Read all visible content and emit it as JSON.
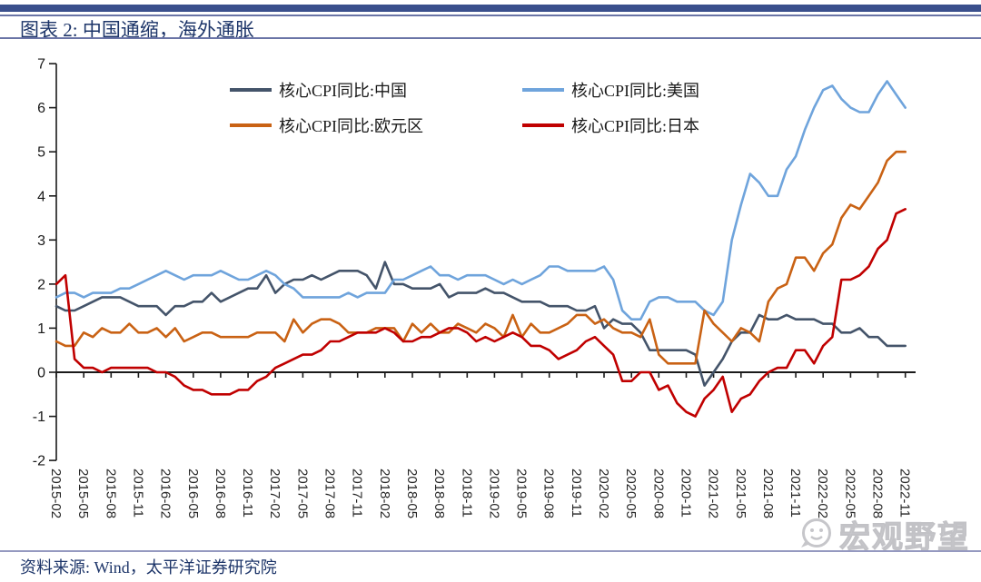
{
  "header": {
    "title": "图表 2:  中国通缩，海外通胀"
  },
  "footer": {
    "source": "资料来源:  Wind，太平洋证券研究院"
  },
  "watermark": {
    "text": "宏观野望",
    "icon": "wechat-face-icon"
  },
  "colors": {
    "accent_bar": "#3A4F8C",
    "title_text": "#1D3569",
    "axis": "#1a1a1a",
    "footer_rule": "#9599C0",
    "watermark_gray": "#C9C9CD"
  },
  "chart_data": {
    "type": "line",
    "title": "图表 2: 中国通缩，海外通胀",
    "xlabel": "",
    "ylabel": "",
    "ylim": [
      -2,
      7
    ],
    "y_ticks": [
      7,
      6,
      5,
      4,
      3,
      2,
      1,
      0,
      -1,
      -2
    ],
    "grid": false,
    "legend_position": "top-inside-two-columns",
    "x_start": "2015-02",
    "x_frequency": "monthly",
    "x_tick_labels": [
      "2015-02",
      "2015-05",
      "2015-08",
      "2015-11",
      "2016-02",
      "2016-05",
      "2016-08",
      "2016-11",
      "2017-02",
      "2017-05",
      "2017-08",
      "2017-11",
      "2018-02",
      "2018-05",
      "2018-08",
      "2018-11",
      "2019-02",
      "2019-05",
      "2019-08",
      "2019-11",
      "2020-02",
      "2020-05",
      "2020-08",
      "2020-11",
      "2021-02",
      "2021-05",
      "2021-08",
      "2021-11",
      "2022-02",
      "2022-05",
      "2022-08",
      "2022-11"
    ],
    "x_tick_step_months": 3,
    "series": [
      {
        "name": "核心CPI同比:中国",
        "color": "#44546A",
        "values": [
          1.5,
          1.4,
          1.4,
          1.5,
          1.6,
          1.7,
          1.7,
          1.7,
          1.6,
          1.5,
          1.5,
          1.5,
          1.3,
          1.5,
          1.5,
          1.6,
          1.6,
          1.8,
          1.6,
          1.7,
          1.8,
          1.9,
          1.9,
          2.2,
          1.8,
          2.0,
          2.1,
          2.1,
          2.2,
          2.1,
          2.2,
          2.3,
          2.3,
          2.3,
          2.2,
          1.9,
          2.5,
          2.0,
          2.0,
          1.9,
          1.9,
          1.9,
          2.0,
          1.7,
          1.8,
          1.8,
          1.8,
          1.9,
          1.8,
          1.8,
          1.7,
          1.6,
          1.6,
          1.6,
          1.5,
          1.5,
          1.5,
          1.4,
          1.4,
          1.5,
          1.0,
          1.2,
          1.1,
          1.1,
          0.9,
          0.5,
          0.5,
          0.5,
          0.5,
          0.5,
          0.4,
          -0.3,
          0.0,
          0.3,
          0.7,
          0.9,
          0.9,
          1.3,
          1.2,
          1.2,
          1.3,
          1.2,
          1.2,
          1.2,
          1.1,
          1.1,
          0.9,
          0.9,
          1.0,
          0.8,
          0.8,
          0.6,
          0.6,
          0.6
        ]
      },
      {
        "name": "核心CPI同比:美国",
        "color": "#6FA4DC",
        "values": [
          1.7,
          1.8,
          1.8,
          1.7,
          1.8,
          1.8,
          1.8,
          1.9,
          1.9,
          2.0,
          2.1,
          2.2,
          2.3,
          2.2,
          2.1,
          2.2,
          2.2,
          2.2,
          2.3,
          2.2,
          2.1,
          2.1,
          2.2,
          2.3,
          2.2,
          2.0,
          1.9,
          1.7,
          1.7,
          1.7,
          1.7,
          1.7,
          1.8,
          1.7,
          1.8,
          1.8,
          1.8,
          2.1,
          2.1,
          2.2,
          2.3,
          2.4,
          2.2,
          2.2,
          2.1,
          2.2,
          2.2,
          2.2,
          2.1,
          2.0,
          2.1,
          2.0,
          2.1,
          2.2,
          2.4,
          2.4,
          2.3,
          2.3,
          2.3,
          2.3,
          2.4,
          2.1,
          1.4,
          1.2,
          1.2,
          1.6,
          1.7,
          1.7,
          1.6,
          1.6,
          1.6,
          1.4,
          1.3,
          1.6,
          3.0,
          3.8,
          4.5,
          4.3,
          4.0,
          4.0,
          4.6,
          4.9,
          5.5,
          6.0,
          6.4,
          6.5,
          6.2,
          6.0,
          5.9,
          5.9,
          6.3,
          6.6,
          6.3,
          6.0
        ]
      },
      {
        "name": "核心CPI同比:欧元区",
        "color": "#C96214",
        "values": [
          0.7,
          0.6,
          0.6,
          0.9,
          0.8,
          1.0,
          0.9,
          0.9,
          1.1,
          0.9,
          0.9,
          1.0,
          0.8,
          1.0,
          0.7,
          0.8,
          0.9,
          0.9,
          0.8,
          0.8,
          0.8,
          0.8,
          0.9,
          0.9,
          0.9,
          0.7,
          1.2,
          0.9,
          1.1,
          1.2,
          1.2,
          1.1,
          0.9,
          0.9,
          0.9,
          1.0,
          1.0,
          1.0,
          0.7,
          1.1,
          0.9,
          1.1,
          0.9,
          0.9,
          1.1,
          1.0,
          0.9,
          1.1,
          1.0,
          0.8,
          1.3,
          0.8,
          1.1,
          0.9,
          0.9,
          1.0,
          1.1,
          1.3,
          1.3,
          1.1,
          1.2,
          1.0,
          0.9,
          0.9,
          0.8,
          1.2,
          0.4,
          0.2,
          0.2,
          0.2,
          0.2,
          1.4,
          1.1,
          0.9,
          0.7,
          1.0,
          0.9,
          0.7,
          1.6,
          1.9,
          2.0,
          2.6,
          2.6,
          2.3,
          2.7,
          2.9,
          3.5,
          3.8,
          3.7,
          4.0,
          4.3,
          4.8,
          5.0,
          5.0
        ]
      },
      {
        "name": "核心CPI同比:日本",
        "color": "#C00000",
        "values": [
          2.0,
          2.2,
          0.3,
          0.1,
          0.1,
          0.0,
          0.1,
          0.1,
          0.1,
          0.1,
          0.1,
          0.0,
          0.0,
          -0.1,
          -0.3,
          -0.4,
          -0.4,
          -0.5,
          -0.5,
          -0.5,
          -0.4,
          -0.4,
          -0.2,
          -0.1,
          0.1,
          0.2,
          0.3,
          0.4,
          0.4,
          0.5,
          0.7,
          0.7,
          0.8,
          0.9,
          0.9,
          0.9,
          1.0,
          0.9,
          0.7,
          0.7,
          0.8,
          0.8,
          0.9,
          1.0,
          1.0,
          0.9,
          0.7,
          0.8,
          0.7,
          0.8,
          0.9,
          0.8,
          0.6,
          0.6,
          0.5,
          0.3,
          0.4,
          0.5,
          0.7,
          0.8,
          0.6,
          0.4,
          -0.2,
          -0.2,
          0.0,
          0.0,
          -0.4,
          -0.3,
          -0.7,
          -0.9,
          -1.0,
          -0.6,
          -0.4,
          -0.1,
          -0.9,
          -0.6,
          -0.5,
          -0.2,
          0.0,
          0.1,
          0.1,
          0.5,
          0.5,
          0.2,
          0.6,
          0.8,
          2.1,
          2.1,
          2.2,
          2.4,
          2.8,
          3.0,
          3.6,
          3.7
        ]
      }
    ]
  }
}
